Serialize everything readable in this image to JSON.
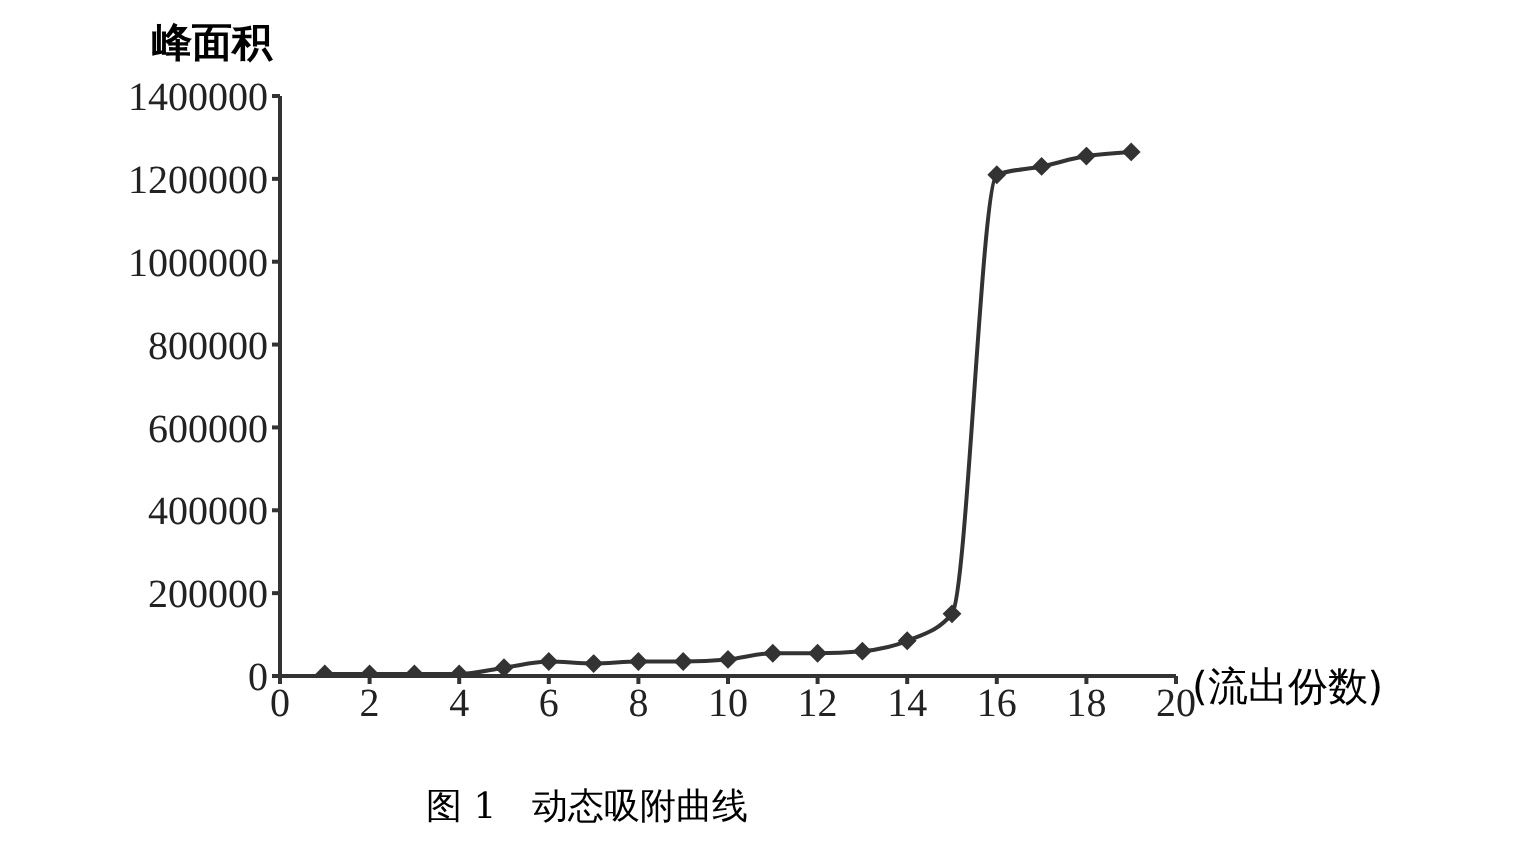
{
  "chart_data": {
    "type": "line",
    "xlabel": "(流出份数)",
    "ylabel": "峰面积",
    "annotations": [
      "图 1　动态吸附曲线"
    ],
    "x": [
      1,
      2,
      3,
      4,
      5,
      6,
      7,
      8,
      9,
      10,
      11,
      12,
      13,
      14,
      15,
      16,
      17,
      18,
      19
    ],
    "series": [
      {
        "color": "#333333",
        "values": [
          5000,
          5000,
          5000,
          5000,
          20000,
          35000,
          30000,
          35000,
          35000,
          40000,
          55000,
          55000,
          60000,
          85000,
          150000,
          1210000,
          1230000,
          1255000,
          1265000
        ]
      }
    ],
    "xlim": [
      0,
      20
    ],
    "xticks": [
      0,
      2,
      4,
      6,
      8,
      10,
      12,
      14,
      16,
      18,
      20
    ],
    "ylim": [
      0,
      1400000
    ],
    "yticks": [
      0,
      200000,
      400000,
      600000,
      800000,
      1000000,
      1200000,
      1400000
    ],
    "grid": false,
    "legend": false,
    "marker": "diamond",
    "line_style": "solid"
  }
}
